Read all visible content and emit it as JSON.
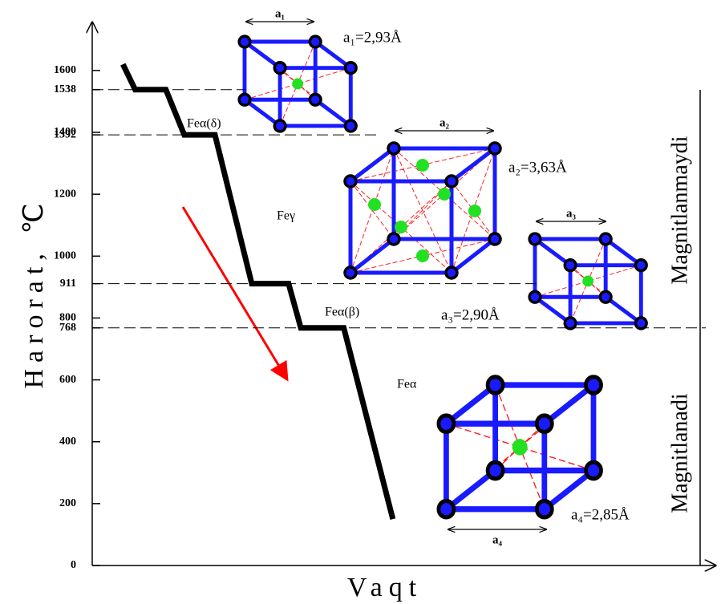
{
  "chart_data": {
    "type": "line",
    "y_label": "Harorat, ℃",
    "x_label": "Vaqt",
    "x": [
      5,
      7,
      12,
      15,
      20,
      26,
      32,
      34,
      41,
      49
    ],
    "values": [
      1620,
      1538,
      1538,
      1392,
      1392,
      911,
      911,
      768,
      768,
      150
    ],
    "color": "#000000",
    "xlim": [
      0,
      100
    ],
    "ylim": [
      0,
      1750
    ],
    "yticks": [
      0,
      200,
      400,
      600,
      768,
      800,
      911,
      1000,
      1200,
      1392,
      1400,
      1538,
      1600
    ],
    "reference_lines": [
      1538,
      1392,
      911,
      768
    ],
    "phases": [
      "Feα(δ)",
      "Feγ",
      "Feα(β)",
      "Feα"
    ],
    "lattice_parameters": [
      "a₁=2,93Å",
      "a₂=3,63Å",
      "a₃=2,90Å",
      "a₄=2,85Å"
    ],
    "lattice_edges": [
      "a₁",
      "a₂",
      "a₃",
      "a₄"
    ],
    "regions": [
      "Magnitlanmaydi",
      "Magnitlanadi"
    ]
  }
}
